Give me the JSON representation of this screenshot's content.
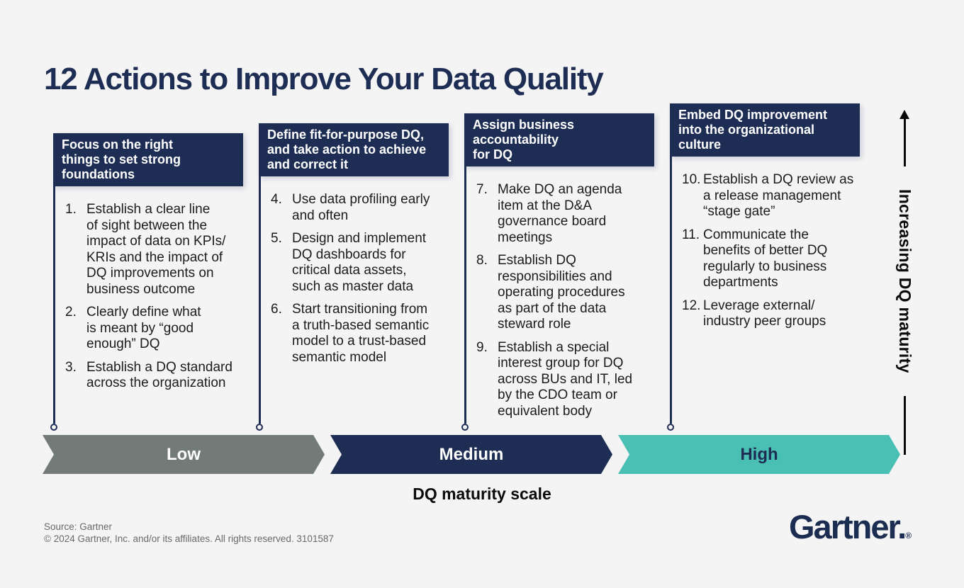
{
  "title": "12 Actions to Improve Your Data Quality",
  "columns": [
    {
      "header": "Focus on the right\nthings to set strong\nfoundations",
      "items": [
        {
          "num": "1.",
          "text": "Establish a clear line\nof sight between the\nimpact of data on KPIs/\nKRIs and the impact of\nDQ improvements on\nbusiness outcome"
        },
        {
          "num": "2.",
          "text": "Clearly define what\nis meant by “good\nenough” DQ"
        },
        {
          "num": "3.",
          "text": "Establish a DQ standard\nacross the organization"
        }
      ]
    },
    {
      "header": "Define fit-for-purpose DQ,\nand take action to achieve\nand correct it",
      "items": [
        {
          "num": "4.",
          "text": "Use data profiling early\nand often"
        },
        {
          "num": "5.",
          "text": "Design and implement\nDQ dashboards for\ncritical data assets,\nsuch as master data"
        },
        {
          "num": "6.",
          "text": "Start transitioning from\na truth-based semantic\nmodel to a trust-based\nsemantic model"
        }
      ]
    },
    {
      "header": "Assign business\naccountability\nfor DQ",
      "items": [
        {
          "num": "7.",
          "text": "Make DQ an agenda\nitem at the D&A\ngovernance board\nmeetings"
        },
        {
          "num": "8.",
          "text": "Establish DQ\nresponsibilities and\noperating procedures\nas part of the data\nsteward role"
        },
        {
          "num": "9.",
          "text": "Establish a special\ninterest group for DQ\nacross BUs and IT, led\nby the CDO team or\nequivalent body"
        }
      ]
    },
    {
      "header": "Embed DQ improvement\ninto the organizational\nculture",
      "items": [
        {
          "num": "10.",
          "text": "Establish a DQ review as\na release management\n“stage gate”"
        },
        {
          "num": "11.",
          "text": "Communicate the\nbenefits of better DQ\nregularly to business\ndepartments"
        },
        {
          "num": "12.",
          "text": "Leverage external/\nindustry peer groups"
        }
      ]
    }
  ],
  "maturity_scale": {
    "segments": [
      {
        "label": "Low",
        "color": "#727b77",
        "text_color": "#ffffff"
      },
      {
        "label": "Medium",
        "color": "#1e2d53",
        "text_color": "#ffffff"
      },
      {
        "label": "High",
        "color": "#4ac0b4",
        "text_color": "#1e2d53"
      }
    ],
    "axis_label": "DQ maturity scale"
  },
  "y_axis_label": "Increasing DQ maturity",
  "footer": {
    "source": "Source: Gartner",
    "copyright": "© 2024 Gartner, Inc. and/or its affiliates. All rights reserved. 3101587"
  },
  "logo": {
    "text": "Gartner.",
    "registered": "®"
  },
  "colors": {
    "navy": "#1e2d53",
    "gray": "#727b77",
    "teal": "#4ac0b4",
    "background": "#f4f4f5"
  }
}
